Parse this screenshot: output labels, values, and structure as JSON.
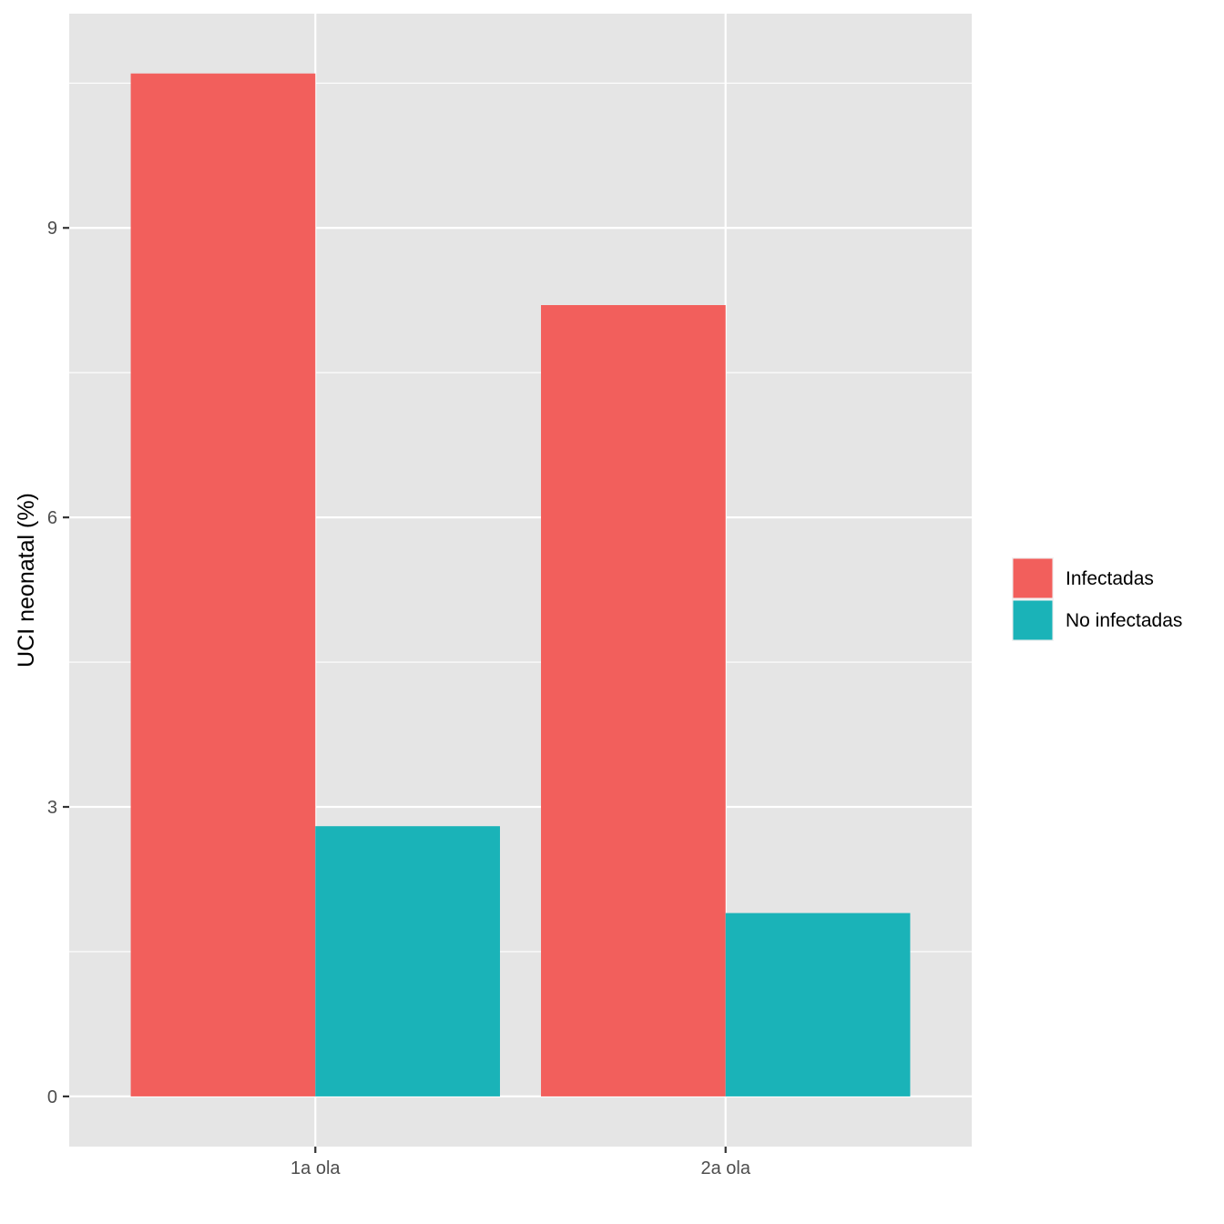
{
  "chart_data": {
    "type": "bar",
    "categories": [
      "1a ola",
      "2a ola"
    ],
    "series": [
      {
        "name": "Infectadas",
        "values": [
          10.6,
          8.2
        ],
        "color": "#F25F5C"
      },
      {
        "name": "No infectadas",
        "values": [
          2.8,
          1.9
        ],
        "color": "#1AB3B8"
      }
    ],
    "title": "",
    "xlabel": "",
    "ylabel": "UCI neonatal (%)",
    "ylim": [
      -0.52,
      11.22
    ],
    "y_ticks": [
      0,
      3,
      6,
      9
    ],
    "y_tick_labels": [
      "0",
      "3",
      "6",
      "9"
    ],
    "grid": true,
    "legend_position": "right",
    "panel_color": "#E5E5E5",
    "grid_color": "#FFFFFF"
  }
}
